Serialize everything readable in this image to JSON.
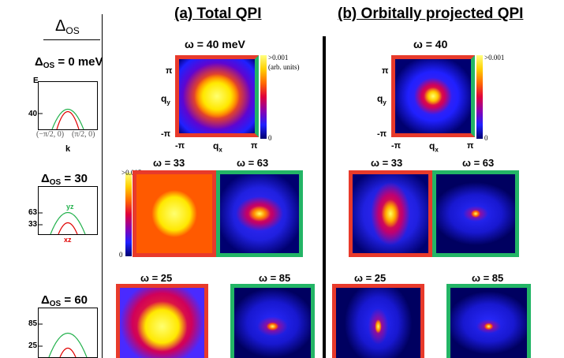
{
  "side_column": {
    "header": "Δ_OS",
    "rows": [
      {
        "label_prefix": "Δ",
        "label_sub": "OS",
        "label_value": "= 0 meV",
        "axis_e": "E",
        "tick1": "40",
        "k_left": "(−π/2, 0)",
        "k_right": "(π/2, 0)",
        "axis_k": "k"
      },
      {
        "label_prefix": "Δ",
        "label_sub": "OS",
        "label_value": "= 30",
        "tick_high": "63",
        "tick_low": "33",
        "band_yz": "yz",
        "band_xz": "xz"
      },
      {
        "label_prefix": "Δ",
        "label_sub": "OS",
        "label_value": "= 60",
        "tick_high": "85",
        "tick_low": "25"
      }
    ]
  },
  "panels": {
    "a_title": "(a) Total QPI",
    "b_title": "(b) Orbitally projected QPI"
  },
  "row1": {
    "a_omega": "ω = 40 meV",
    "b_omega": "ω = 40",
    "axis_pi": "π",
    "axis_minus_pi": "-π",
    "qy": "q",
    "qy_sub": "y",
    "qx": "q",
    "qx_sub": "x",
    "cbar_a_top": ">0.001",
    "cbar_a_units": "(arb. units)",
    "cbar_a_bottom": "0",
    "cbar_b_top": ">0.001",
    "cbar_b_bottom": "0"
  },
  "row2": {
    "a_left_omega": "ω = 33",
    "a_right_omega": "ω = 63",
    "b_left_omega": "ω = 33",
    "b_right_omega": "ω = 63",
    "cbar_top": ">0.005",
    "cbar_bottom": "0"
  },
  "row3": {
    "a_left_omega": "ω = 25",
    "a_right_omega": "ω = 85",
    "b_left_omega": "ω = 25",
    "b_right_omega": "ω = 85"
  },
  "colors": {
    "red_frame": "#e83a2b",
    "green_frame": "#23b566",
    "background_map": "#000060"
  }
}
